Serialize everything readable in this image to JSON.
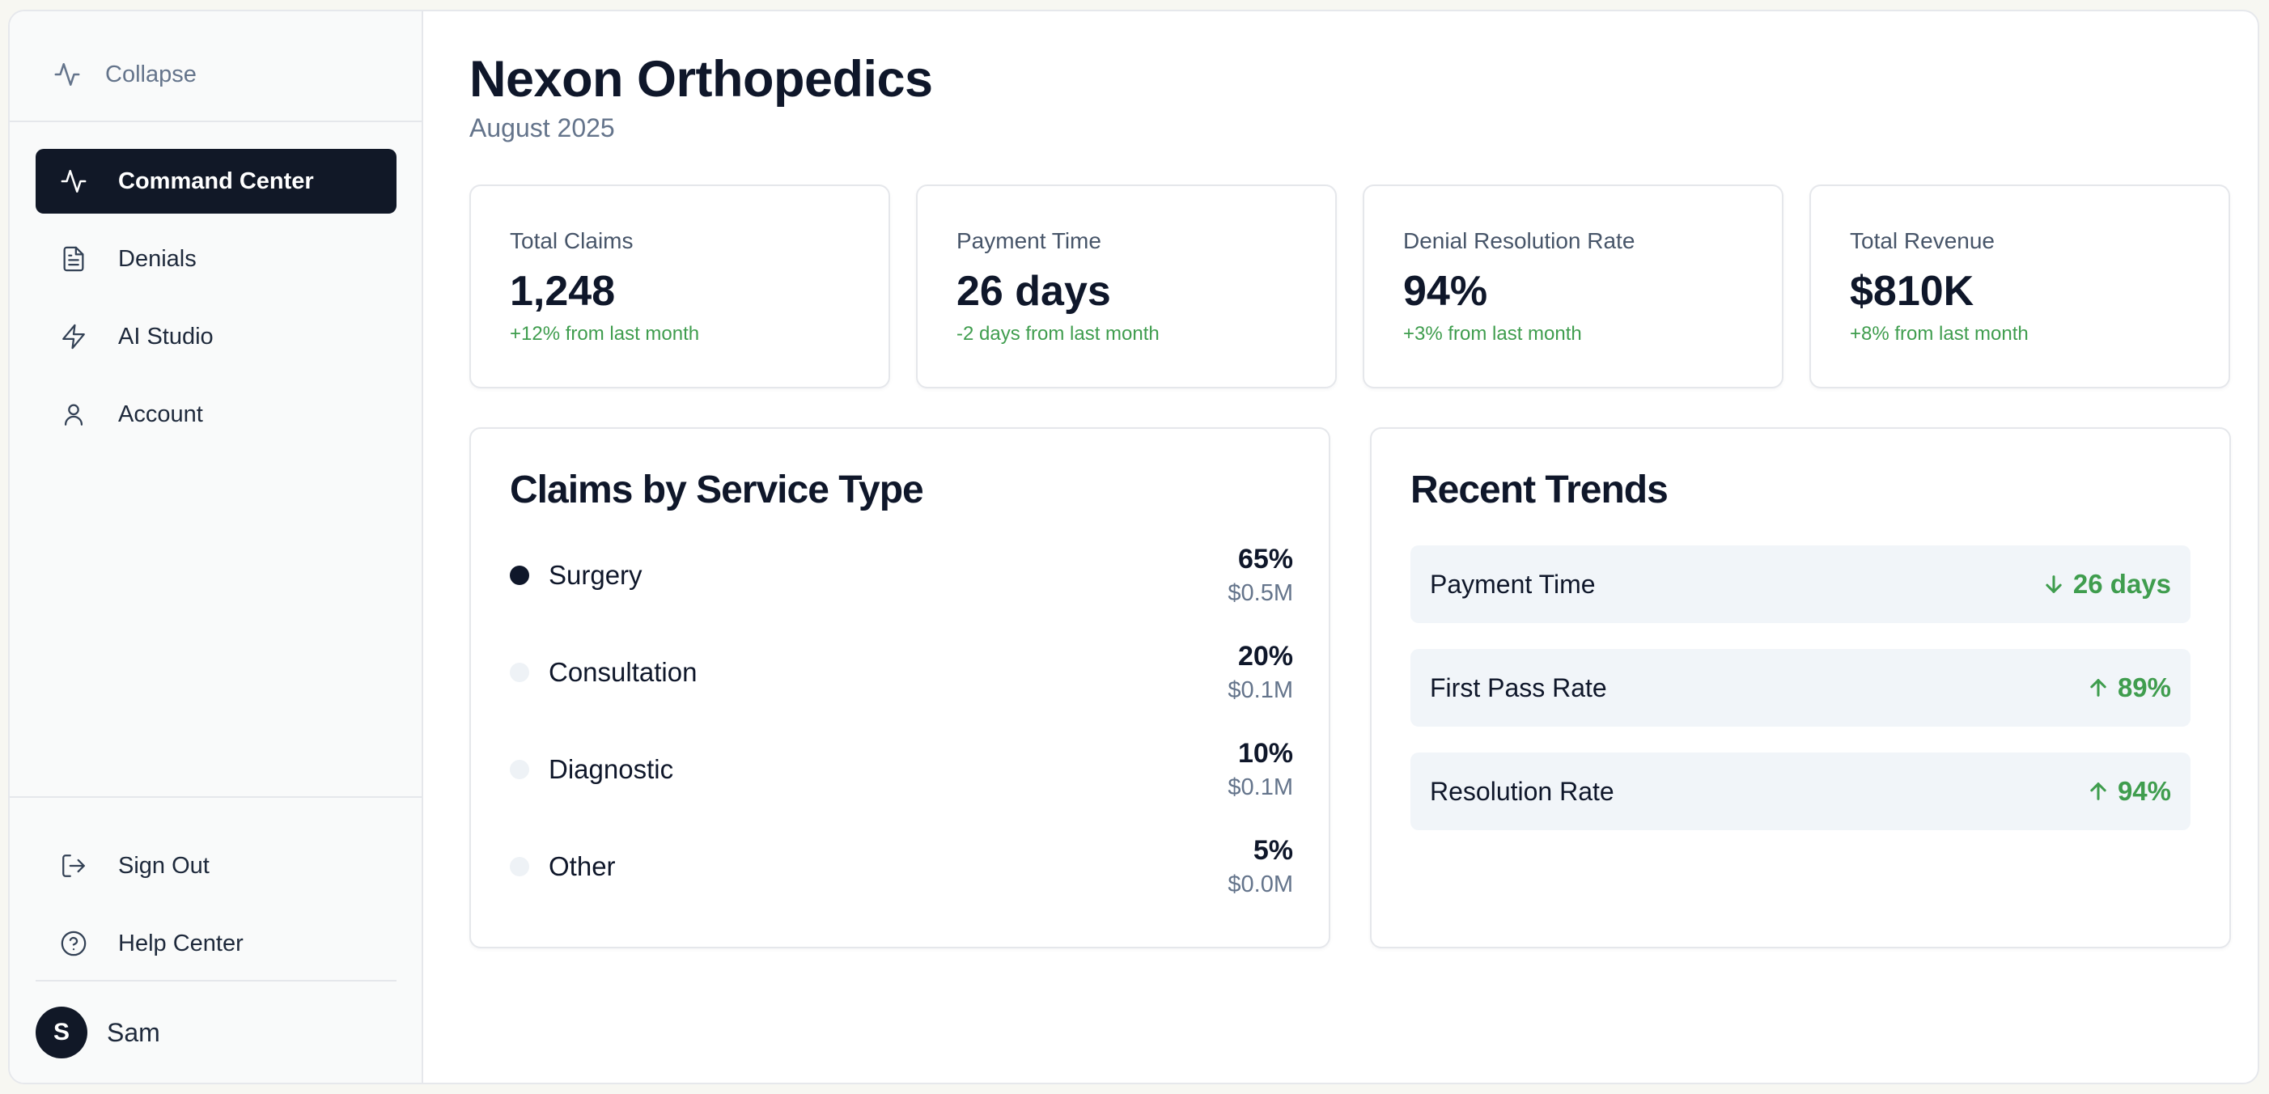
{
  "sidebar": {
    "collapse_label": "Collapse",
    "nav": [
      {
        "label": "Command Center",
        "icon": "activity-icon",
        "active": true
      },
      {
        "label": "Denials",
        "icon": "document-icon"
      },
      {
        "label": "AI Studio",
        "icon": "lightning-icon"
      },
      {
        "label": "Account",
        "icon": "user-icon"
      }
    ],
    "bottom": [
      {
        "label": "Sign Out",
        "icon": "sign-out-icon"
      },
      {
        "label": "Help Center",
        "icon": "help-icon"
      }
    ],
    "user": {
      "initial": "S",
      "name": "Sam"
    }
  },
  "header": {
    "title": "Nexon Orthopedics",
    "subtitle": "August 2025"
  },
  "stats": [
    {
      "label": "Total Claims",
      "value": "1,248",
      "change": "+12% from last month"
    },
    {
      "label": "Payment Time",
      "value": "26 days",
      "change": "-2 days from last month"
    },
    {
      "label": "Denial Resolution Rate",
      "value": "94%",
      "change": "+3% from last month"
    },
    {
      "label": "Total Revenue",
      "value": "$810K",
      "change": "+8% from last month"
    }
  ],
  "service_panel": {
    "title": "Claims by Service Type",
    "items": [
      {
        "name": "Surgery",
        "pct": "65%",
        "amount": "$0.5M"
      },
      {
        "name": "Consultation",
        "pct": "20%",
        "amount": "$0.1M"
      },
      {
        "name": "Diagnostic",
        "pct": "10%",
        "amount": "$0.1M"
      },
      {
        "name": "Other",
        "pct": "5%",
        "amount": "$0.0M"
      }
    ]
  },
  "trends_panel": {
    "title": "Recent Trends",
    "items": [
      {
        "name": "Payment Time",
        "value": "26 days",
        "direction": "down"
      },
      {
        "name": "First Pass Rate",
        "value": "89%",
        "direction": "up"
      },
      {
        "name": "Resolution Rate",
        "value": "94%",
        "direction": "up"
      }
    ]
  },
  "colors": {
    "accent_dark": "#111827",
    "positive": "#3f9d4e",
    "muted": "#64748b"
  }
}
